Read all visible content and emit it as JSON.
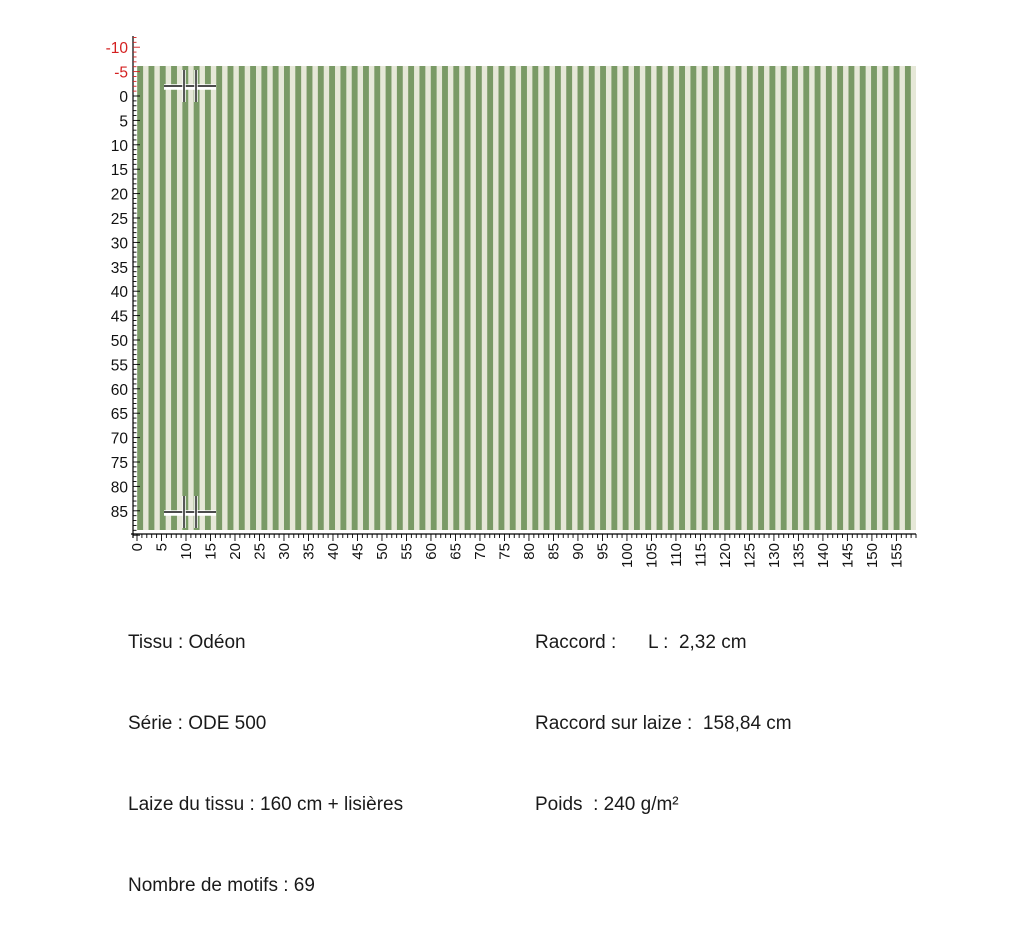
{
  "fabric": {
    "colors": {
      "stripe_green": "#7a9a66",
      "stripe_cream": "#e6e8d8",
      "tick_negative": "#d42020",
      "tick_default": "#000000"
    },
    "stripe_count": 69,
    "vertical_ruler": {
      "labels": [
        "-10",
        "-5",
        "0",
        "5",
        "10",
        "15",
        "20",
        "25",
        "30",
        "35",
        "40",
        "45",
        "50",
        "55",
        "60",
        "65",
        "70",
        "75",
        "80",
        "85"
      ]
    },
    "horizontal_ruler": {
      "labels": [
        "0",
        "5",
        "10",
        "15",
        "20",
        "25",
        "30",
        "35",
        "40",
        "45",
        "50",
        "55",
        "60",
        "65",
        "70",
        "75",
        "80",
        "85",
        "90",
        "95",
        "100",
        "105",
        "110",
        "115",
        "120",
        "125",
        "130",
        "135",
        "140",
        "145",
        "150",
        "155"
      ]
    },
    "markers": [
      "crosshair-top-left",
      "crosshair-bottom-left"
    ]
  },
  "info_left": {
    "tissu": "Tissu : Odéon",
    "serie": "Série : ODE 500",
    "laize": "Laize du tissu : 160 cm + lisières",
    "motifs": "Nombre de motifs : 69"
  },
  "info_right": {
    "raccord": "Raccord :      L :  2,32 cm",
    "raccord_laize": "Raccord sur laize :  158,84 cm",
    "poids": "Poids  : 240 g/m²"
  }
}
